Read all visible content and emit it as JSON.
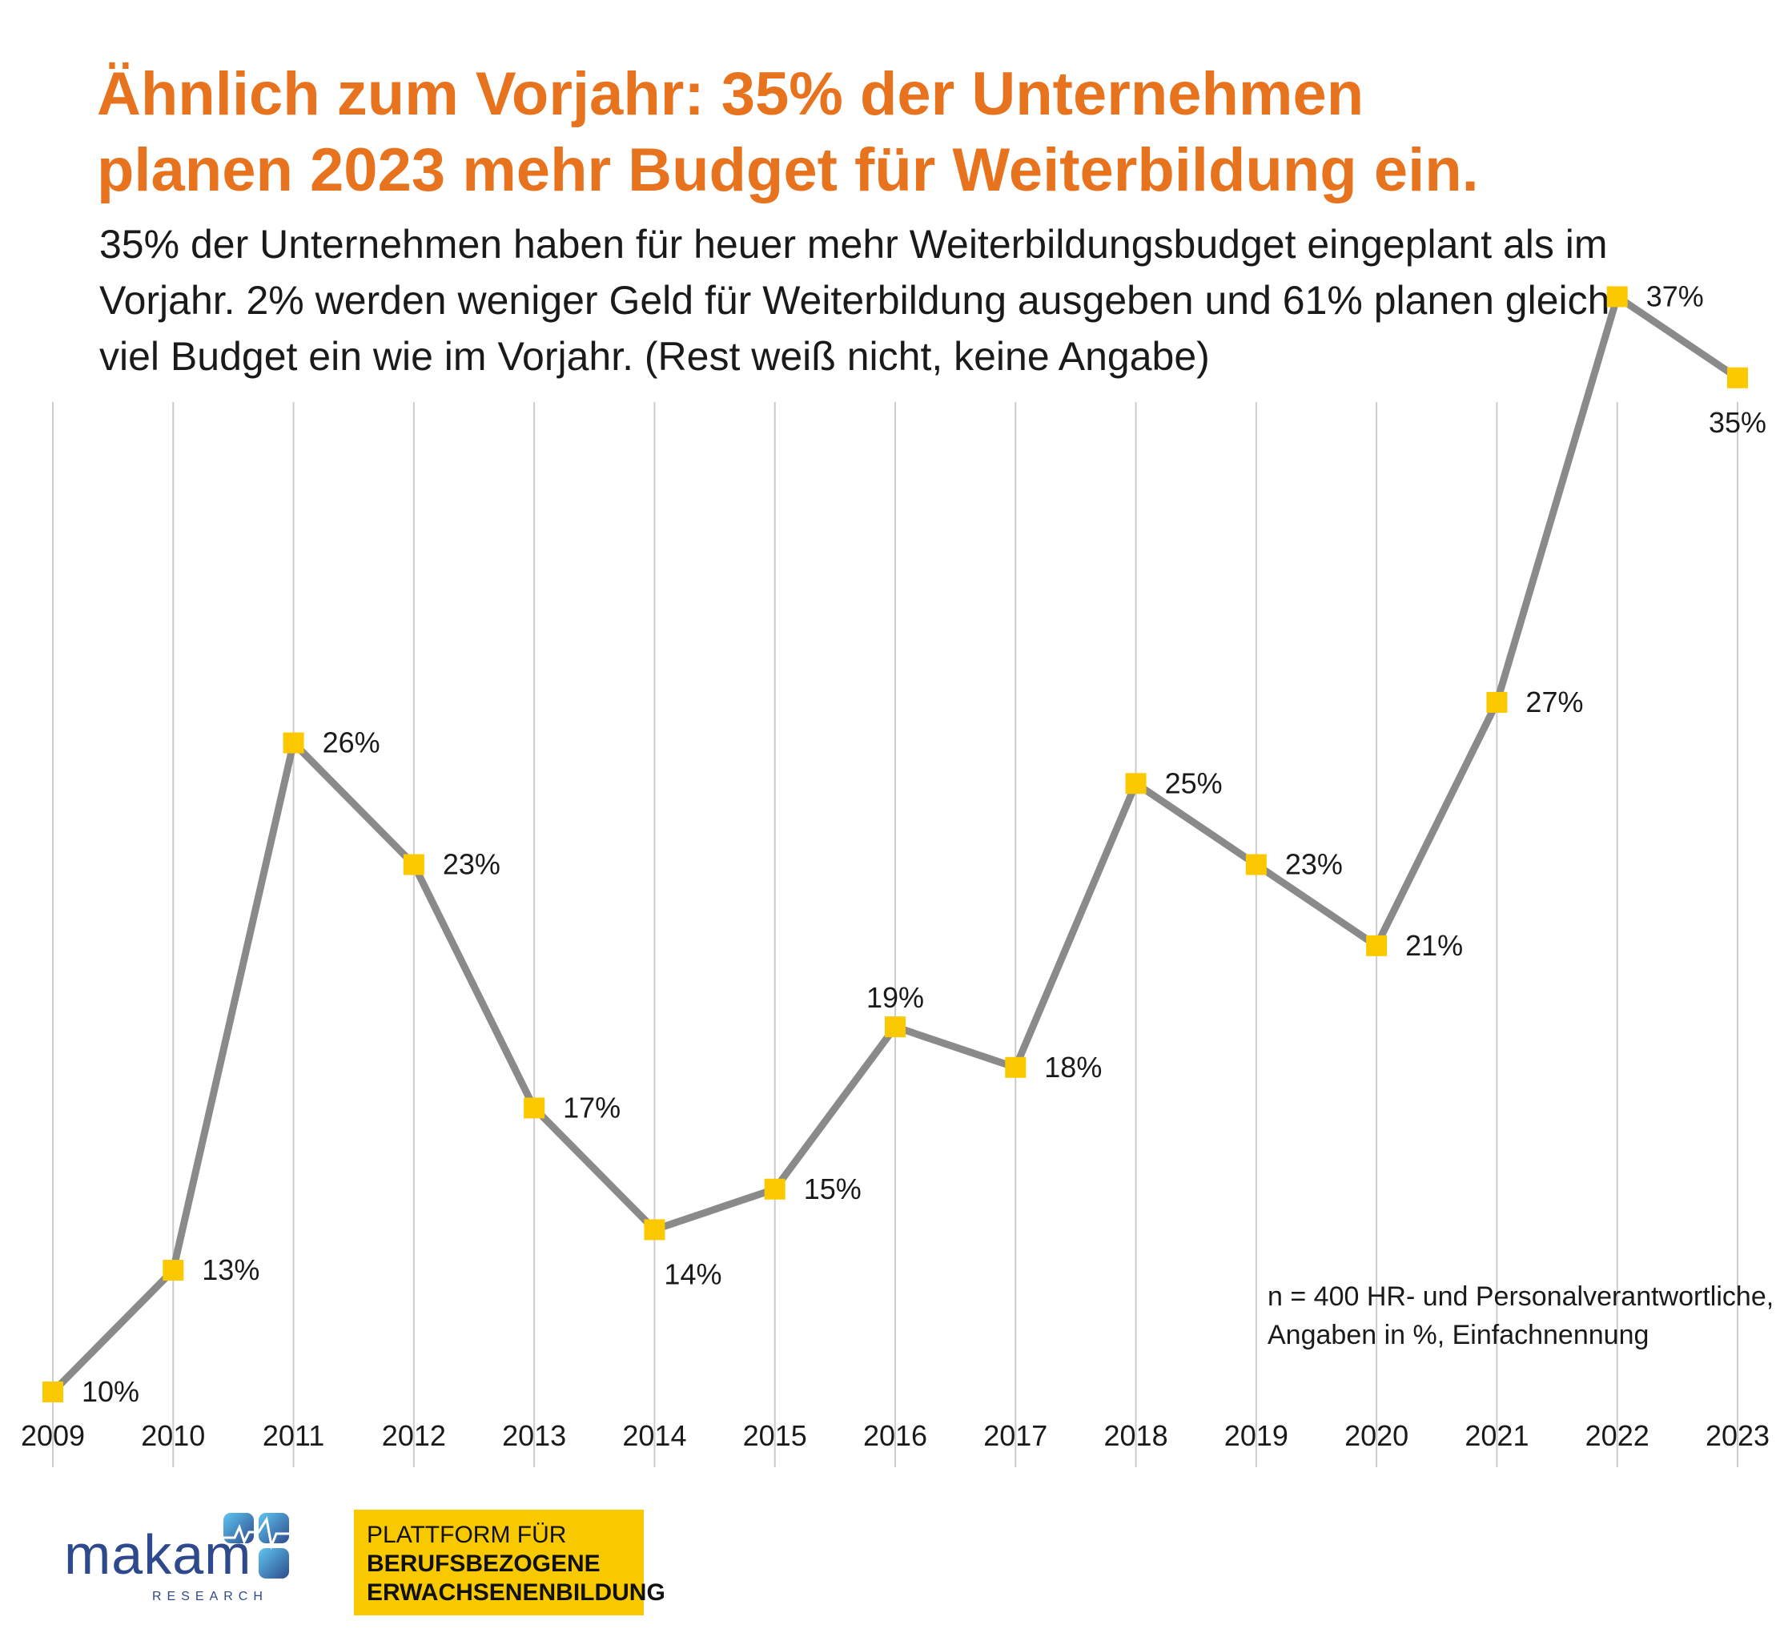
{
  "title_lines": [
    "Ähnlich zum Vorjahr: 35% der Unternehmen",
    "planen 2023 mehr Budget für Weiterbildung ein."
  ],
  "subtitle_lines": [
    "35% der Unternehmen haben für heuer mehr Weiterbildungsbudget eingeplant als im",
    "Vorjahr. 2% werden weniger Geld für Weiterbildung ausgeben und 61% planen gleich",
    "viel Budget ein wie im Vorjahr. (Rest weiß nicht, keine Angabe)"
  ],
  "note_lines": [
    "n = 400 HR- und Personalverantwortliche,",
    "Angaben in %, Einfachnennung"
  ],
  "chart_data": {
    "type": "line",
    "categories": [
      "2009",
      "2010",
      "2011",
      "2012",
      "2013",
      "2014",
      "2015",
      "2016",
      "2017",
      "2018",
      "2019",
      "2020",
      "2021",
      "2022",
      "2023"
    ],
    "values": [
      10,
      13,
      26,
      23,
      17,
      14,
      15,
      19,
      18,
      25,
      23,
      21,
      27,
      37,
      35
    ],
    "data_labels": [
      "10%",
      "13%",
      "26%",
      "23%",
      "17%",
      "14%",
      "15%",
      "19%",
      "18%",
      "25%",
      "23%",
      "21%",
      "27%",
      "37%",
      "35%"
    ],
    "title": "",
    "xlabel": "",
    "ylabel": "",
    "grid": "vertical",
    "colors": {
      "line": "#8A8A8A",
      "marker": "#FCC800",
      "grid": "#CCCCCC",
      "text": "#1a1a1a"
    }
  },
  "logos": {
    "makam": {
      "word": "makam",
      "sub": "RESEARCH"
    },
    "platform": {
      "line1": "PLATTFORM FÜR",
      "line2": "BERUFSBEZOGENE",
      "line3": "ERWACHSENENBILDUNG"
    }
  },
  "colors": {
    "title": "#E8731E",
    "platform_bg": "#F9C900",
    "makam": "#2E4A8C"
  }
}
